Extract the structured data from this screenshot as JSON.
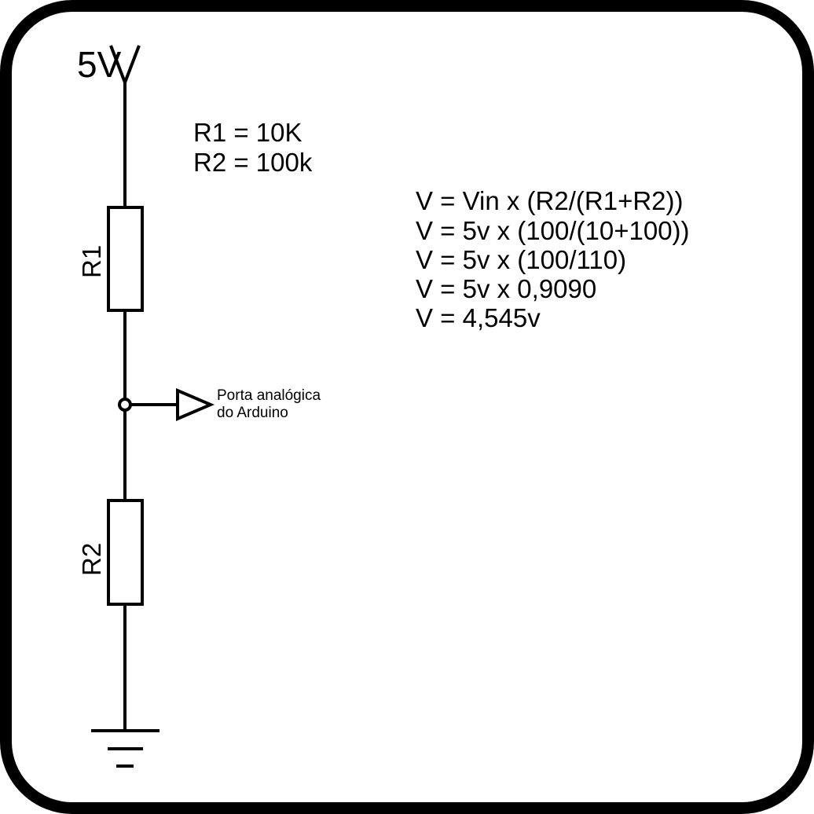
{
  "supply": {
    "label": "5V"
  },
  "components": {
    "r1": {
      "label": "R1"
    },
    "r2": {
      "label": "R2"
    }
  },
  "values": {
    "lines": [
      "R1 = 10K",
      "R2 = 100k"
    ]
  },
  "output": {
    "lines": [
      "Porta analógica",
      "do Arduino"
    ]
  },
  "equations": {
    "lines": [
      "V = Vin x (R2/(R1+R2))",
      "V = 5v x (100/(10+100))",
      "V = 5v x (100/110)",
      "V = 5v x 0,9090",
      "V = 4,545v"
    ]
  }
}
